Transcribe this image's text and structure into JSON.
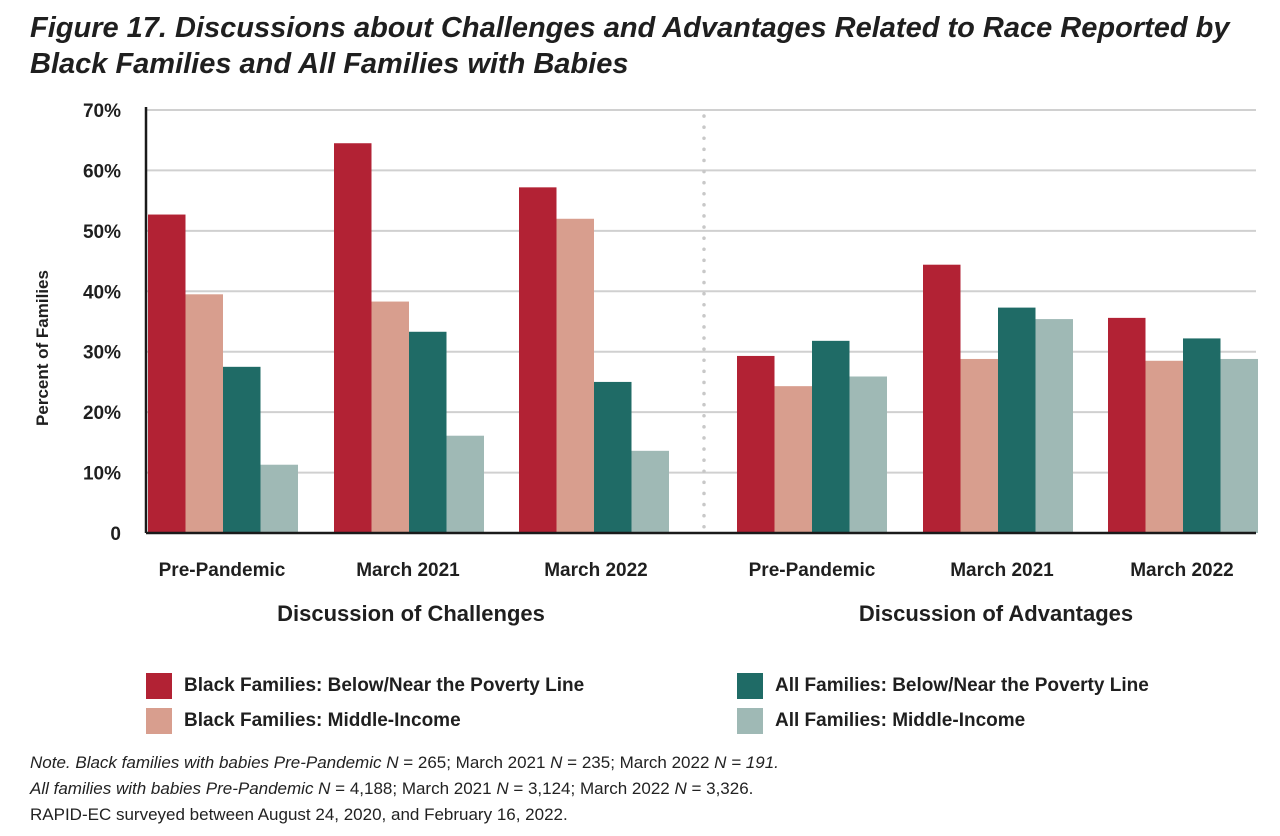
{
  "title_line1": "Figure 17. Discussions about Challenges and Advantages Related to Race Reported by",
  "title_line2": "Black Families and All Families with Babies",
  "colors": {
    "black_below": "#b22234",
    "black_middle": "#d89e8e",
    "all_below": "#1f6b66",
    "all_middle": "#9fb9b5",
    "grid": "#d0d0d0",
    "divider": "#c8c8c8"
  },
  "chart_data": {
    "type": "bar",
    "ylabel": "Percent of Families",
    "ylim": [
      0,
      70
    ],
    "yticks": [
      {
        "value": 0,
        "label": "0"
      },
      {
        "value": 10,
        "label": "10%"
      },
      {
        "value": 20,
        "label": "20%"
      },
      {
        "value": 30,
        "label": "30%"
      },
      {
        "value": 40,
        "label": "40%"
      },
      {
        "value": 50,
        "label": "50%"
      },
      {
        "value": 60,
        "label": "60%"
      },
      {
        "value": 70,
        "label": "70%"
      }
    ],
    "grid": true,
    "legend_position": "bottom",
    "series": [
      {
        "name": "Black Families: Below/Near the Poverty Line",
        "color": "#b22234"
      },
      {
        "name": "Black Families: Middle-Income",
        "color": "#d89e8e"
      },
      {
        "name": "All Families: Below/Near the Poverty Line",
        "color": "#1f6b66"
      },
      {
        "name": "All Families: Middle-Income",
        "color": "#9fb9b5"
      }
    ],
    "panels": [
      {
        "label": "Discussion of Challenges",
        "categories": [
          "Pre-Pandemic",
          "March 2021",
          "March 2022"
        ],
        "values": [
          [
            52.7,
            39.5,
            27.5,
            11.3
          ],
          [
            64.5,
            38.3,
            33.3,
            16.1
          ],
          [
            57.2,
            52.0,
            25.0,
            13.6
          ]
        ]
      },
      {
        "label": "Discussion of Advantages",
        "categories": [
          "Pre-Pandemic",
          "March 2021",
          "March 2022"
        ],
        "values": [
          [
            29.3,
            24.3,
            31.8,
            25.9
          ],
          [
            44.4,
            28.8,
            37.3,
            35.4
          ],
          [
            35.6,
            28.5,
            32.2,
            28.8
          ]
        ]
      }
    ]
  },
  "notes": {
    "line1": [
      {
        "text": "Note. Black families with babies Pre-Pandemic N",
        "italic": true
      },
      {
        "text": " = 265; March 2021 ",
        "italic": false
      },
      {
        "text": "N",
        "italic": true
      },
      {
        "text": " = 235; March 2022 ",
        "italic": false
      },
      {
        "text": "N = 191.",
        "italic": true
      }
    ],
    "line2": [
      {
        "text": "All families with babies Pre-Pandemic N",
        "italic": true
      },
      {
        "text": " = 4,188; March 2021 ",
        "italic": false
      },
      {
        "text": "N",
        "italic": true
      },
      {
        "text": " = 3,124; March 2022 ",
        "italic": false
      },
      {
        "text": "N",
        "italic": true
      },
      {
        "text": " = 3,326.",
        "italic": false
      }
    ],
    "line3": [
      {
        "text": "RAPID-EC surveyed between August 24, 2020, and February 16, 2022.",
        "italic": false
      }
    ]
  }
}
